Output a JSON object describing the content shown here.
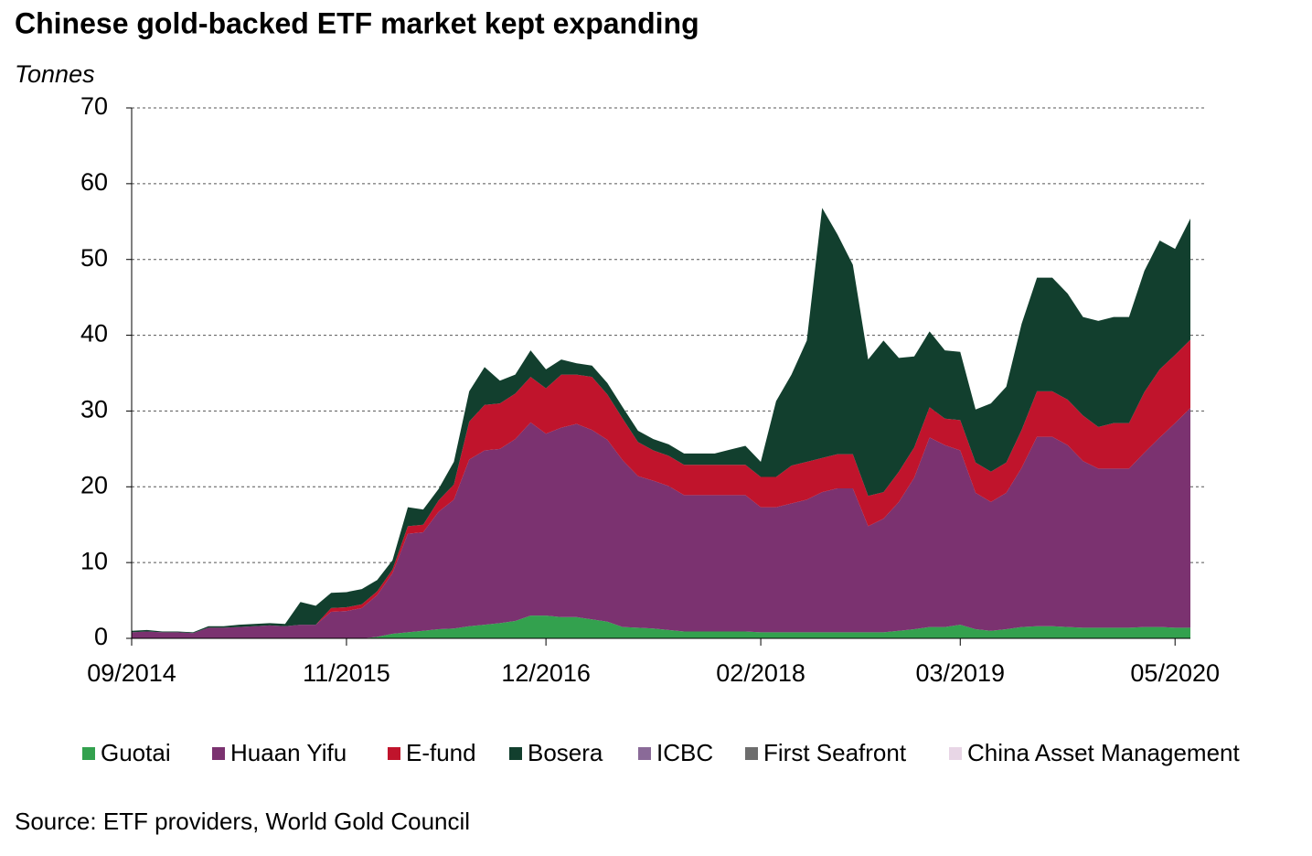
{
  "chart_data": {
    "type": "stacked_area",
    "title": "Chinese gold-backed ETF market kept expanding",
    "y_label": "Tonnes",
    "source": "Source: ETF providers, World Gold Council",
    "categories": [
      "09/2014",
      null,
      null,
      null,
      null,
      null,
      null,
      null,
      null,
      null,
      null,
      null,
      null,
      null,
      "11/2015",
      null,
      null,
      null,
      null,
      null,
      null,
      null,
      null,
      null,
      null,
      null,
      null,
      "12/2016",
      null,
      null,
      null,
      null,
      null,
      null,
      null,
      null,
      null,
      null,
      null,
      null,
      null,
      "02/2018",
      null,
      null,
      null,
      null,
      null,
      null,
      null,
      null,
      null,
      null,
      null,
      null,
      "03/2019",
      null,
      null,
      null,
      null,
      null,
      null,
      null,
      null,
      null,
      null,
      null,
      null,
      null,
      "05/2020",
      null
    ],
    "series": [
      {
        "name": "Guotai",
        "color": "#33a14e",
        "values": [
          0,
          0,
          0,
          0,
          0,
          0,
          0,
          0,
          0,
          0,
          0,
          0,
          0,
          0,
          0,
          0,
          0.2,
          0.6,
          0.8,
          1,
          1.2,
          1.3,
          1.6,
          1.8,
          2,
          2.3,
          3,
          3,
          2.8,
          2.8,
          2.5,
          2.2,
          1.5,
          1.4,
          1.3,
          1.1,
          0.9,
          0.9,
          0.9,
          0.9,
          0.9,
          0.8,
          0.8,
          0.8,
          0.8,
          0.8,
          0.8,
          0.8,
          0.8,
          0.8,
          1,
          1.2,
          1.5,
          1.5,
          1.8,
          1.2,
          1,
          1.2,
          1.5,
          1.6,
          1.6,
          1.5,
          1.4,
          1.4,
          1.4,
          1.4,
          1.5,
          1.5,
          1.4,
          1.4
        ]
      },
      {
        "name": "Huaan Yifu",
        "color": "#7b3270",
        "values": [
          0.8,
          0.9,
          0.8,
          0.8,
          0.7,
          1.4,
          1.4,
          1.5,
          1.6,
          1.7,
          1.6,
          1.8,
          1.8,
          3.5,
          3.6,
          4,
          5.5,
          8,
          13,
          13,
          15.5,
          17,
          22,
          23,
          23,
          24,
          25.5,
          24,
          25,
          25.5,
          25,
          24,
          22,
          20,
          19.5,
          19,
          18,
          18,
          18,
          18,
          18,
          16.5,
          16.5,
          17,
          17.5,
          18.5,
          19,
          19,
          14,
          15,
          17,
          20,
          25,
          24,
          23,
          18,
          17,
          18,
          21,
          25,
          25,
          24,
          22,
          21,
          21,
          21,
          23,
          25,
          27,
          29
        ]
      },
      {
        "name": "E-fund",
        "color": "#c0142c",
        "values": [
          0,
          0,
          0,
          0,
          0,
          0,
          0,
          0,
          0,
          0,
          0,
          0,
          0,
          0.5,
          0.5,
          0.5,
          0.5,
          0.5,
          1,
          1,
          1.5,
          2,
          5,
          6,
          6,
          6,
          6,
          6,
          7,
          6.5,
          7,
          6,
          5.5,
          4.5,
          4,
          4,
          4,
          4,
          4,
          4,
          4,
          4,
          4,
          5,
          5,
          4.5,
          4.5,
          4.5,
          4,
          3.5,
          4,
          4,
          4,
          3.5,
          4,
          4,
          4,
          4,
          5,
          6,
          6,
          6,
          6,
          5.5,
          6,
          6,
          8,
          9,
          9,
          9
        ]
      },
      {
        "name": "Bosera",
        "color": "#123f2e",
        "values": [
          0.2,
          0.2,
          0.1,
          0.1,
          0.1,
          0.2,
          0.2,
          0.3,
          0.3,
          0.3,
          0.3,
          3,
          2.5,
          2,
          2,
          2,
          1.5,
          1.2,
          2.5,
          2,
          1.5,
          3,
          4,
          5,
          3,
          2.5,
          3.5,
          2.5,
          2,
          1.5,
          1.5,
          1.5,
          1.5,
          1.5,
          1.5,
          1.5,
          1.5,
          1.5,
          1.5,
          2,
          2.5,
          2,
          10,
          12,
          16,
          33,
          29,
          25,
          18,
          20,
          15,
          12,
          10,
          9,
          9,
          7,
          9,
          10,
          14,
          15,
          15,
          14,
          13,
          14,
          14,
          14,
          16,
          17,
          14,
          16
        ]
      },
      {
        "name": "ICBC",
        "color": "#8a6a98",
        "values": [
          0,
          0,
          0,
          0,
          0,
          0,
          0,
          0,
          0,
          0,
          0,
          0,
          0,
          0,
          0,
          0,
          0,
          0,
          0,
          0,
          0,
          0,
          0,
          0,
          0,
          0,
          0,
          0,
          0,
          0,
          0,
          0,
          0,
          0,
          0,
          0,
          0,
          0,
          0,
          0,
          0,
          0,
          0,
          0,
          0,
          0,
          0,
          0,
          0,
          0,
          0,
          0,
          0,
          0,
          0,
          0,
          0,
          0,
          0,
          0,
          0,
          0,
          0,
          0,
          0,
          0,
          0,
          0,
          0,
          0
        ]
      },
      {
        "name": "First Seafront",
        "color": "#6d6d6d",
        "values": [
          0,
          0,
          0,
          0,
          0,
          0,
          0,
          0,
          0,
          0,
          0,
          0,
          0,
          0,
          0,
          0,
          0,
          0,
          0,
          0,
          0,
          0,
          0,
          0,
          0,
          0,
          0,
          0,
          0,
          0,
          0,
          0,
          0,
          0,
          0,
          0,
          0,
          0,
          0,
          0,
          0,
          0,
          0,
          0,
          0,
          0,
          0,
          0,
          0,
          0,
          0,
          0,
          0,
          0,
          0,
          0,
          0,
          0,
          0,
          0,
          0,
          0,
          0,
          0,
          0,
          0,
          0,
          0,
          0,
          0
        ]
      },
      {
        "name": "China Asset Management",
        "color": "#e8d6e6",
        "values": [
          0,
          0,
          0,
          0,
          0,
          0,
          0,
          0,
          0,
          0,
          0,
          0,
          0,
          0,
          0,
          0,
          0,
          0,
          0,
          0,
          0,
          0,
          0,
          0,
          0,
          0,
          0,
          0,
          0,
          0,
          0,
          0,
          0,
          0,
          0,
          0,
          0,
          0,
          0,
          0,
          0,
          0,
          0,
          0,
          0,
          0,
          0,
          0,
          0,
          0,
          0,
          0,
          0,
          0,
          0,
          0,
          0,
          0,
          0,
          0,
          0,
          0,
          0,
          0,
          0,
          0,
          0,
          0,
          0,
          0
        ]
      }
    ],
    "ylim": [
      0,
      70
    ],
    "yticks": [
      0,
      10,
      20,
      30,
      40,
      50,
      60,
      70
    ],
    "grid": true
  }
}
